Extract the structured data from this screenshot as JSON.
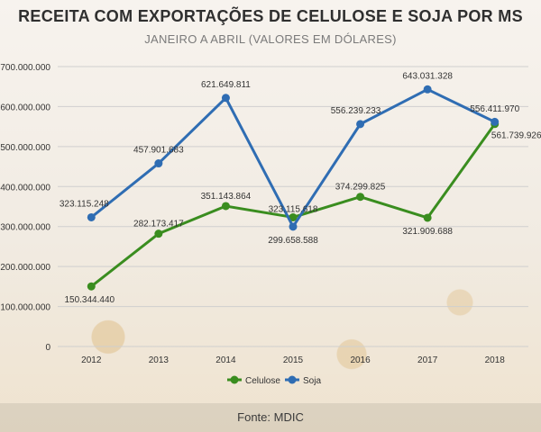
{
  "header": {
    "title": "RECEITA COM EXPORTAÇÕES DE CELULOSE E SOJA POR MS",
    "subtitle": "JANEIRO A ABRIL (VALORES EM DÓLARES)"
  },
  "footer": {
    "source": "Fonte: MDIC"
  },
  "colors": {
    "celulose": "#3a8d1f",
    "soja": "#2f6db3",
    "grid": "#cfcfcf",
    "text": "#333333"
  },
  "chart_data": {
    "type": "line",
    "x": [
      "2012",
      "2013",
      "2014",
      "2015",
      "2016",
      "2017",
      "2018"
    ],
    "ylim": [
      0,
      700000000
    ],
    "yticks": [
      0,
      100000000,
      200000000,
      300000000,
      400000000,
      500000000,
      600000000,
      700000000
    ],
    "ytick_labels": [
      "0",
      "100.000.000",
      "200.000.000",
      "300.000.000",
      "400.000.000",
      "500.000.000",
      "600.000.000",
      "700.000.000"
    ],
    "legend_position": "bottom",
    "series": [
      {
        "name": "Celulose",
        "values": [
          150344440,
          282173417,
          351143864,
          323115618,
          374299825,
          321909688,
          556411970
        ],
        "labels": [
          "150.344.440",
          "282.173.417",
          "351.143.864",
          "323.115.618",
          "374.299.825",
          "321.909.688",
          "556.411.970"
        ]
      },
      {
        "name": "Soja",
        "values": [
          323115248,
          457901683,
          621649811,
          299658588,
          556239233,
          643031328,
          561739926
        ],
        "labels": [
          "323.115.248",
          "457.901.683",
          "621.649.811",
          "299.658.588",
          "556.239.233",
          "643.031.328",
          "561.739.926"
        ]
      }
    ]
  }
}
